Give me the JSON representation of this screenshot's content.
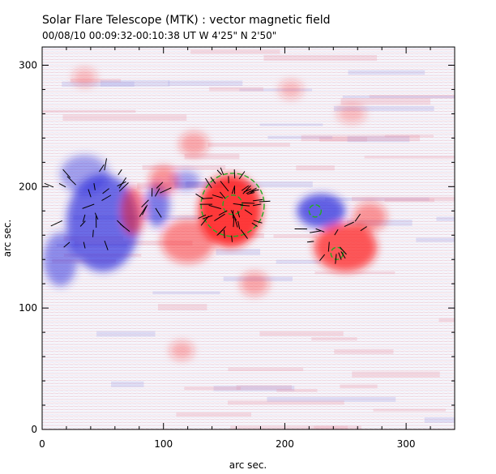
{
  "title": "Solar Flare Telescope (MTK) : vector magnetic field",
  "subtitle": "00/08/10   00:09:32-00:10:38 UT     W 4'25\"   N 2'50\"",
  "chart_data": {
    "type": "heatmap",
    "title": "Solar Flare Telescope (MTK) : vector magnetic field",
    "xlabel": "arc sec.",
    "ylabel": "arc sec.",
    "xlim": [
      0,
      340
    ],
    "ylim": [
      0,
      315
    ],
    "x_ticks": [
      0,
      100,
      200,
      300
    ],
    "y_ticks": [
      0,
      100,
      200,
      300
    ],
    "x_ticklabels": [
      "0",
      "100",
      "200",
      "300"
    ],
    "y_ticklabels": [
      "0",
      "100",
      "200",
      "300"
    ],
    "colors": {
      "positive_polarity": "#ff1a1a",
      "negative_polarity": "#2a2adc",
      "contour": "#22aa22",
      "vectors": "#000000"
    },
    "regions": [
      {
        "polarity": "negative",
        "cx": 50,
        "cy": 170,
        "rx": 30,
        "ry": 40,
        "strength": 0.8
      },
      {
        "polarity": "negative",
        "cx": 15,
        "cy": 140,
        "rx": 14,
        "ry": 22,
        "strength": 0.6
      },
      {
        "polarity": "negative",
        "cx": 35,
        "cy": 210,
        "rx": 20,
        "ry": 16,
        "strength": 0.5
      },
      {
        "polarity": "negative",
        "cx": 95,
        "cy": 185,
        "rx": 10,
        "ry": 18,
        "strength": 0.7
      },
      {
        "polarity": "negative",
        "cx": 118,
        "cy": 205,
        "rx": 12,
        "ry": 8,
        "strength": 0.5
      },
      {
        "polarity": "negative",
        "cx": 230,
        "cy": 180,
        "rx": 20,
        "ry": 14,
        "strength": 0.85
      },
      {
        "polarity": "positive",
        "cx": 155,
        "cy": 180,
        "rx": 26,
        "ry": 30,
        "strength": 1.0
      },
      {
        "polarity": "positive",
        "cx": 75,
        "cy": 180,
        "rx": 10,
        "ry": 20,
        "strength": 0.6
      },
      {
        "polarity": "positive",
        "cx": 100,
        "cy": 205,
        "rx": 12,
        "ry": 12,
        "strength": 0.5
      },
      {
        "polarity": "positive",
        "cx": 120,
        "cy": 155,
        "rx": 22,
        "ry": 18,
        "strength": 0.55
      },
      {
        "polarity": "positive",
        "cx": 250,
        "cy": 150,
        "rx": 26,
        "ry": 20,
        "strength": 0.85
      },
      {
        "polarity": "positive",
        "cx": 270,
        "cy": 175,
        "rx": 14,
        "ry": 12,
        "strength": 0.5
      },
      {
        "polarity": "positive",
        "cx": 175,
        "cy": 120,
        "rx": 12,
        "ry": 10,
        "strength": 0.4
      },
      {
        "polarity": "positive",
        "cx": 125,
        "cy": 235,
        "rx": 12,
        "ry": 10,
        "strength": 0.4
      },
      {
        "polarity": "positive",
        "cx": 115,
        "cy": 65,
        "rx": 10,
        "ry": 8,
        "strength": 0.35
      },
      {
        "polarity": "positive",
        "cx": 205,
        "cy": 280,
        "rx": 10,
        "ry": 8,
        "strength": 0.3
      },
      {
        "polarity": "positive",
        "cx": 255,
        "cy": 260,
        "rx": 12,
        "ry": 8,
        "strength": 0.3
      },
      {
        "polarity": "positive",
        "cx": 35,
        "cy": 290,
        "rx": 10,
        "ry": 8,
        "strength": 0.3
      }
    ],
    "contours": [
      {
        "cx": 157,
        "cy": 185,
        "rx": 26,
        "ry": 26
      },
      {
        "cx": 157,
        "cy": 185,
        "rx": 8,
        "ry": 8
      },
      {
        "cx": 225,
        "cy": 180,
        "rx": 5,
        "ry": 5
      },
      {
        "cx": 243,
        "cy": 145,
        "rx": 5,
        "ry": 5
      }
    ]
  }
}
